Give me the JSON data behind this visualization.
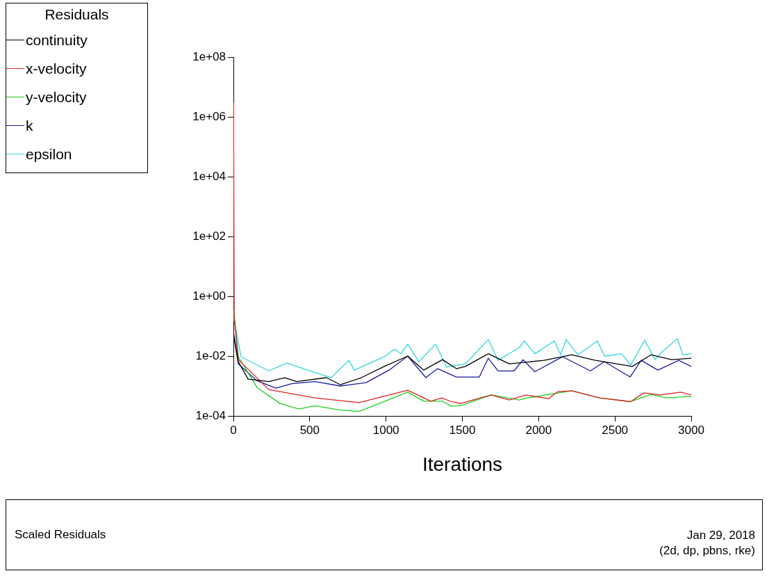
{
  "chart_data": {
    "type": "line",
    "title": "Scaled Residuals",
    "xlabel": "Iterations",
    "legend_title": "Residuals",
    "legend": "top left",
    "annotations": [
      "Jan 29, 2018",
      "(2d, dp, pbns, rke)"
    ],
    "log": "y",
    "grid": false,
    "marker": "none",
    "line_style": "solid",
    "xlim": [
      0,
      3000
    ],
    "xticks": [
      0,
      500,
      1000,
      1500,
      2000,
      2500,
      3000
    ],
    "ylim": [
      0.0001,
      100000000
    ],
    "yticks": [
      {
        "value": 0.0001,
        "label": "1e-04"
      },
      {
        "value": 0.01,
        "label": "1e-02"
      },
      {
        "value": 1,
        "label": "1e+00"
      },
      {
        "value": 100,
        "label": "1e+02"
      },
      {
        "value": 10000,
        "label": "1e+04"
      },
      {
        "value": 1000000,
        "label": "1e+06"
      },
      {
        "value": 100000000,
        "label": "1e+08"
      }
    ],
    "series": [
      {
        "name": "continuity",
        "color": "#000000",
        "x": [
          2,
          32,
          96,
          232,
          337,
          414,
          610,
          701,
          838,
          988,
          1142,
          1247,
          1370,
          1461,
          1520,
          1670,
          1807,
          2035,
          2217,
          2372,
          2613,
          2736,
          2872,
          3000
        ],
        "values": [
          0.055,
          0.0065,
          0.0017,
          0.0014,
          0.0019,
          0.0014,
          0.0019,
          0.0011,
          0.0019,
          0.0045,
          0.01,
          0.0034,
          0.0076,
          0.0038,
          0.0045,
          0.012,
          0.0055,
          0.0072,
          0.011,
          0.0072,
          0.0045,
          0.011,
          0.0076,
          0.0085
        ]
      },
      {
        "name": "x-velocity",
        "color": "#e02020",
        "x": [
          1,
          5,
          32,
          232,
          533,
          823,
          1142,
          1293,
          1365,
          1429,
          1488,
          1689,
          1807,
          1916,
          2066,
          2126,
          2217,
          2399,
          2603,
          2690,
          2795,
          2931,
          3000
        ],
        "values": [
          3000000,
          0.2,
          0.0076,
          0.00076,
          0.0004,
          0.00028,
          0.00072,
          0.00031,
          0.0004,
          0.0003,
          0.00026,
          0.0005,
          0.00034,
          0.0005,
          0.00038,
          0.00065,
          0.00069,
          0.0004,
          0.0003,
          0.00059,
          0.0005,
          0.00062,
          0.0005
        ]
      },
      {
        "name": "y-velocity",
        "color": "#20d020",
        "x": [
          2,
          32,
          155,
          305,
          428,
          533,
          687,
          823,
          1142,
          1247,
          1370,
          1429,
          1488,
          1689,
          1871,
          1930,
          2217,
          2399,
          2603,
          2736,
          2840,
          3000
        ],
        "values": [
          0.35,
          0.0095,
          0.00089,
          0.00026,
          0.00017,
          0.00022,
          0.00016,
          0.00014,
          0.00062,
          0.00031,
          0.00031,
          0.00021,
          0.00022,
          0.0005,
          0.00034,
          0.0004,
          0.00069,
          0.0004,
          0.0003,
          0.00052,
          0.0004,
          0.00045
        ]
      },
      {
        "name": "k",
        "color": "#1a1aa0",
        "x": [
          2,
          32,
          155,
          278,
          382,
          533,
          701,
          869,
          1020,
          1142,
          1261,
          1338,
          1461,
          1611,
          1670,
          1734,
          1839,
          1898,
          1975,
          2112,
          2157,
          2339,
          2431,
          2599,
          2672,
          2781,
          2918,
          3000
        ],
        "values": [
          0.047,
          0.0055,
          0.0015,
          0.00085,
          0.0012,
          0.0014,
          0.001,
          0.0013,
          0.0034,
          0.01,
          0.0019,
          0.0038,
          0.002,
          0.002,
          0.0085,
          0.0032,
          0.0032,
          0.0076,
          0.003,
          0.0072,
          0.0095,
          0.0032,
          0.0065,
          0.002,
          0.0072,
          0.0034,
          0.0072,
          0.0045
        ]
      },
      {
        "name": "epsilon",
        "color": "#30d8d8",
        "x": [
          2,
          50,
          232,
          350,
          428,
          642,
          756,
          792,
          988,
          1056,
          1097,
          1142,
          1215,
          1324,
          1397,
          1520,
          1670,
          1734,
          1871,
          1907,
          1975,
          2103,
          2144,
          2180,
          2257,
          2385,
          2431,
          2544,
          2603,
          2695,
          2763,
          2809,
          2909,
          2945,
          3000
        ],
        "values": [
          0.19,
          0.0095,
          0.0032,
          0.0059,
          0.0043,
          0.0019,
          0.0072,
          0.0034,
          0.0095,
          0.017,
          0.012,
          0.025,
          0.0065,
          0.025,
          0.0043,
          0.0055,
          0.036,
          0.0072,
          0.019,
          0.032,
          0.012,
          0.032,
          0.011,
          0.036,
          0.011,
          0.032,
          0.01,
          0.012,
          0.005,
          0.034,
          0.0076,
          0.014,
          0.038,
          0.011,
          0.012
        ]
      }
    ]
  }
}
